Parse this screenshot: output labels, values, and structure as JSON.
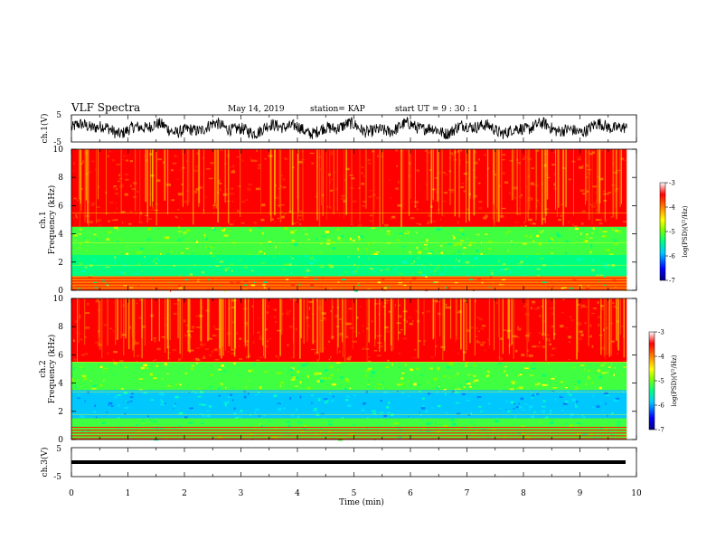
{
  "header": {
    "title": "VLF Spectra",
    "date": "May 14, 2019",
    "station": "station= KAP",
    "start": "start  UT =   9  : 30 : 1"
  },
  "chart_data": [
    {
      "type": "line",
      "name": "ch1-waveform",
      "ylabel": "ch.1(V)",
      "ylim": [
        -5,
        5
      ],
      "y_ticks": [
        "5",
        "-5"
      ],
      "xlim": [
        0,
        10
      ],
      "x_data_end": 9.83,
      "note": "dense noisy waveform, amplitude roughly -3..4 V"
    },
    {
      "type": "heatmap",
      "name": "ch1-spectrogram",
      "ylabel_line1": "ch.1",
      "ylabel_line2": "Frequency (kHz)",
      "ylim": [
        0,
        10
      ],
      "y_ticks": [
        "0",
        "2",
        "4",
        "6",
        "8",
        "10"
      ],
      "xlim": [
        0,
        10
      ],
      "color_scale": {
        "label": "log(PSD)(V²/Hz)",
        "range": [
          -7,
          -3
        ],
        "ticks": [
          "-3",
          "-4",
          "-5",
          "-6",
          "-7"
        ],
        "colors": [
          "#000080",
          "#0000ff",
          "#00c8ff",
          "#00ff80",
          "#80ff00",
          "#ffff00",
          "#ff8000",
          "#ff0000",
          "#ffffff"
        ]
      },
      "bands": [
        {
          "from": 4.5,
          "to": 10,
          "level": "red-orange"
        },
        {
          "from": 2.5,
          "to": 4.5,
          "level": "green-yellow"
        },
        {
          "from": 1.0,
          "to": 2.5,
          "level": "green-cyan"
        },
        {
          "from": 0,
          "to": 1.0,
          "level": "orange-red lines"
        }
      ]
    },
    {
      "type": "heatmap",
      "name": "ch2-spectrogram",
      "ylabel_line1": "ch.2",
      "ylabel_line2": "Frequency (kHz)",
      "ylim": [
        0,
        10
      ],
      "y_ticks": [
        "0",
        "2",
        "4",
        "6",
        "8",
        "10"
      ],
      "xlim": [
        0,
        10
      ],
      "color_scale": {
        "label": "log(PSD)(V²/Hz)",
        "range": [
          -7,
          -3
        ],
        "ticks": [
          "-3",
          "-4",
          "-5",
          "-6",
          "-7"
        ]
      },
      "bands": [
        {
          "from": 5.5,
          "to": 10,
          "level": "red-orange"
        },
        {
          "from": 3.5,
          "to": 5.5,
          "level": "green-yellow"
        },
        {
          "from": 1.5,
          "to": 3.5,
          "level": "cyan-blue"
        },
        {
          "from": 0,
          "to": 1.5,
          "level": "green"
        }
      ]
    },
    {
      "type": "line",
      "name": "ch3-waveform",
      "ylabel": "ch.3(V)",
      "ylim": [
        -5,
        5
      ],
      "y_ticks": [
        "5",
        "-5"
      ],
      "xlim": [
        0,
        10
      ],
      "x_data_end": 9.83,
      "note": "flat thick line near -2 V"
    }
  ],
  "xaxis": {
    "label": "Time  (min)",
    "ticks": [
      "0",
      "1",
      "2",
      "3",
      "4",
      "5",
      "6",
      "7",
      "8",
      "9",
      "10"
    ]
  }
}
